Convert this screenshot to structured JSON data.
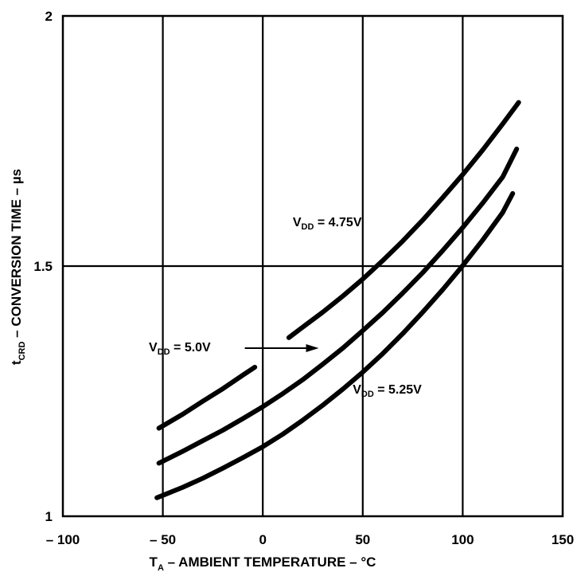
{
  "chart_data": {
    "type": "line",
    "xlabel": {
      "main": "T",
      "sub": "A",
      "rest": " – AMBIENT TEMPERATURE – °C"
    },
    "ylabel": {
      "main": "t",
      "sub": "CRD",
      "rest": " – CONVERSION TIME – µs"
    },
    "xlim": [
      -100,
      150
    ],
    "ylim": [
      1,
      2
    ],
    "x_ticks": [
      {
        "value": -100,
        "label": "– 100"
      },
      {
        "value": -50,
        "label": "– 50"
      },
      {
        "value": 0,
        "label": "0"
      },
      {
        "value": 50,
        "label": "50"
      },
      {
        "value": 100,
        "label": "100"
      },
      {
        "value": 150,
        "label": "150"
      }
    ],
    "y_ticks": [
      {
        "value": 1,
        "label": "1"
      },
      {
        "value": 1.5,
        "label": "1.5"
      },
      {
        "value": 2,
        "label": "2"
      }
    ],
    "grid": true,
    "series": [
      {
        "name": "V_DD = 4.75V",
        "segments": [
          {
            "x": [
              -52,
              -40,
              -30,
              -20,
              -10,
              -4
            ],
            "y": [
              1.176,
              1.204,
              1.23,
              1.255,
              1.282,
              1.298
            ]
          },
          {
            "x": [
              13,
              20,
              30,
              40,
              50,
              60,
              70,
              80,
              90,
              100,
              110,
              120,
              128
            ],
            "y": [
              1.357,
              1.378,
              1.408,
              1.44,
              1.474,
              1.511,
              1.55,
              1.592,
              1.637,
              1.683,
              1.732,
              1.784,
              1.827
            ]
          }
        ]
      },
      {
        "name": "V_DD = 5.0V",
        "segments": [
          {
            "x": [
              -52,
              -40,
              -30,
              -20,
              -10,
              0,
              10,
              20,
              30,
              40,
              50,
              60,
              70,
              80,
              90,
              100,
              110,
              120,
              127
            ],
            "y": [
              1.106,
              1.13,
              1.151,
              1.172,
              1.195,
              1.219,
              1.245,
              1.273,
              1.304,
              1.336,
              1.371,
              1.407,
              1.446,
              1.487,
              1.531,
              1.577,
              1.626,
              1.678,
              1.734
            ]
          }
        ]
      },
      {
        "name": "V_DD = 5.25V",
        "segments": [
          {
            "x": [
              -53,
              -40,
              -30,
              -20,
              -10,
              0,
              10,
              20,
              30,
              40,
              50,
              60,
              70,
              80,
              90,
              100,
              110,
              120,
              125
            ],
            "y": [
              1.037,
              1.058,
              1.076,
              1.096,
              1.117,
              1.139,
              1.164,
              1.192,
              1.222,
              1.254,
              1.288,
              1.325,
              1.365,
              1.408,
              1.453,
              1.501,
              1.552,
              1.607,
              1.645
            ]
          }
        ]
      }
    ],
    "annotations": [
      {
        "target": "V_DD = 4.75V",
        "main": "V",
        "sub": "DD",
        "rest": " = 4.75V",
        "x": 15,
        "y": 1.58
      },
      {
        "target": "V_DD = 5.0V",
        "main": "V",
        "sub": "DD",
        "rest": " = 5.0V",
        "x": -57,
        "y": 1.33,
        "arrow_from": [
          -9,
          1.336
        ],
        "arrow_to": [
          28,
          1.336
        ]
      },
      {
        "target": "V_DD = 5.25V",
        "main": "V",
        "sub": "DD",
        "rest": " = 5.25V",
        "x": 45,
        "y": 1.245
      }
    ]
  }
}
